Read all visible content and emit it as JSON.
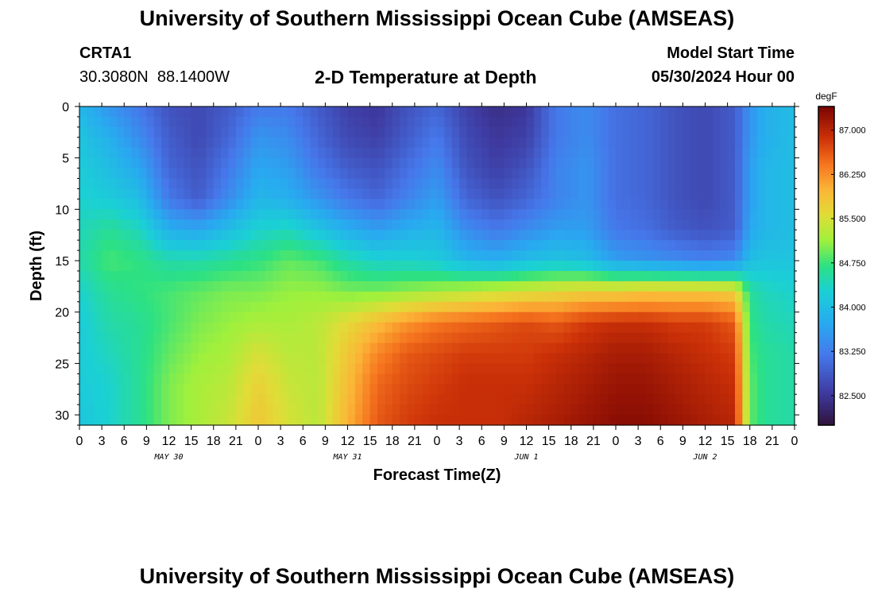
{
  "header": {
    "title": "University of Southern Mississippi Ocean Cube (AMSEAS)",
    "station_id": "CRTA1",
    "coords": "30.3080N  88.1400W",
    "plot_title": "2-D Temperature at Depth",
    "start_label": "Model Start Time",
    "start_value": "05/30/2024 Hour 00"
  },
  "footer": {
    "title": "University of Southern Mississippi Ocean Cube (AMSEAS)"
  },
  "chart_data": {
    "type": "heatmap",
    "title": "2-D Temperature at Depth",
    "xlabel": "Forecast Time(Z)",
    "ylabel": "Depth (ft)",
    "x_range_hours": [
      0,
      96
    ],
    "ylim": [
      0,
      31
    ],
    "x_ticks": [
      {
        "h": 0,
        "label": "0"
      },
      {
        "h": 3,
        "label": "3"
      },
      {
        "h": 6,
        "label": "6"
      },
      {
        "h": 9,
        "label": "9"
      },
      {
        "h": 12,
        "label": "12"
      },
      {
        "h": 15,
        "label": "15"
      },
      {
        "h": 18,
        "label": "18"
      },
      {
        "h": 21,
        "label": "21"
      },
      {
        "h": 24,
        "label": "0"
      },
      {
        "h": 27,
        "label": "3"
      },
      {
        "h": 30,
        "label": "6"
      },
      {
        "h": 33,
        "label": "9"
      },
      {
        "h": 36,
        "label": "12"
      },
      {
        "h": 39,
        "label": "15"
      },
      {
        "h": 42,
        "label": "18"
      },
      {
        "h": 45,
        "label": "21"
      },
      {
        "h": 48,
        "label": "0"
      },
      {
        "h": 51,
        "label": "3"
      },
      {
        "h": 54,
        "label": "6"
      },
      {
        "h": 57,
        "label": "9"
      },
      {
        "h": 60,
        "label": "12"
      },
      {
        "h": 63,
        "label": "15"
      },
      {
        "h": 66,
        "label": "18"
      },
      {
        "h": 69,
        "label": "21"
      },
      {
        "h": 72,
        "label": "0"
      },
      {
        "h": 75,
        "label": "3"
      },
      {
        "h": 78,
        "label": "6"
      },
      {
        "h": 81,
        "label": "9"
      },
      {
        "h": 84,
        "label": "12"
      },
      {
        "h": 87,
        "label": "15"
      },
      {
        "h": 90,
        "label": "18"
      },
      {
        "h": 93,
        "label": "21"
      },
      {
        "h": 96,
        "label": "0"
      }
    ],
    "date_labels": [
      {
        "h": 12,
        "label": "MAY 30"
      },
      {
        "h": 36,
        "label": "MAY 31"
      },
      {
        "h": 60,
        "label": "JUN 1"
      },
      {
        "h": 84,
        "label": "JUN 2"
      }
    ],
    "y_ticks": [
      0,
      5,
      10,
      15,
      20,
      25,
      30
    ],
    "colorbar": {
      "unit": "degF",
      "min": 82.0,
      "max": 87.4,
      "ticks": [
        {
          "value": 87.0,
          "label": "87.000"
        },
        {
          "value": 86.25,
          "label": "86.250"
        },
        {
          "value": 85.5,
          "label": "85.500"
        },
        {
          "value": 84.75,
          "label": "84.750"
        },
        {
          "value": 84.0,
          "label": "84.000"
        },
        {
          "value": 83.25,
          "label": "83.250"
        },
        {
          "value": 82.5,
          "label": "82.500"
        }
      ]
    },
    "depths_ft": [
      0,
      3,
      6,
      9,
      12,
      15,
      18,
      21,
      24,
      27,
      31
    ],
    "times_h": [
      0,
      4,
      8,
      12,
      16,
      20,
      24,
      28,
      32,
      36,
      40,
      44,
      48,
      52,
      56,
      60,
      64,
      68,
      72,
      76,
      80,
      84,
      88,
      90,
      92,
      96
    ],
    "temperature_degF": [
      [
        83.9,
        83.5,
        83.2,
        82.8,
        82.7,
        82.9,
        83.2,
        83.2,
        82.9,
        82.6,
        82.5,
        82.8,
        83.0,
        82.6,
        82.4,
        82.5,
        83.2,
        83.4,
        83.1,
        83.0,
        82.8,
        82.7,
        82.9,
        83.5,
        83.8,
        84.0
      ],
      [
        84.1,
        83.8,
        83.4,
        82.9,
        82.7,
        83.0,
        83.5,
        83.4,
        83.0,
        82.7,
        82.6,
        82.9,
        83.2,
        82.7,
        82.5,
        82.6,
        83.2,
        83.4,
        83.1,
        83.0,
        82.8,
        82.7,
        82.9,
        83.5,
        83.8,
        84.0
      ],
      [
        84.2,
        84.0,
        83.7,
        83.0,
        82.8,
        83.2,
        83.7,
        83.6,
        83.2,
        82.9,
        82.8,
        83.1,
        83.4,
        82.8,
        82.6,
        82.8,
        83.3,
        83.5,
        83.1,
        83.0,
        82.8,
        82.7,
        82.9,
        83.6,
        83.9,
        84.0
      ],
      [
        84.3,
        84.2,
        84.0,
        83.2,
        82.9,
        83.4,
        83.9,
        83.8,
        83.5,
        83.2,
        83.0,
        83.3,
        83.6,
        83.0,
        82.8,
        83.0,
        83.3,
        83.5,
        83.1,
        83.0,
        82.8,
        82.7,
        82.9,
        83.6,
        83.9,
        84.0
      ],
      [
        84.4,
        84.6,
        84.4,
        83.8,
        83.7,
        84.0,
        84.3,
        84.4,
        84.1,
        83.8,
        83.6,
        83.8,
        83.9,
        83.4,
        83.2,
        83.4,
        83.6,
        83.6,
        83.2,
        83.1,
        82.9,
        82.8,
        82.9,
        83.7,
        83.9,
        84.0
      ],
      [
        84.5,
        84.8,
        84.7,
        84.5,
        84.5,
        84.6,
        84.7,
        84.9,
        84.8,
        84.5,
        84.3,
        84.3,
        84.2,
        83.9,
        83.8,
        84.0,
        84.1,
        84.0,
        83.6,
        83.5,
        83.4,
        83.3,
        83.4,
        84.0,
        84.1,
        84.1
      ],
      [
        84.3,
        84.6,
        84.7,
        84.8,
        84.9,
        85.0,
        85.0,
        85.1,
        85.1,
        85.0,
        85.0,
        85.1,
        85.2,
        85.3,
        85.4,
        85.5,
        85.6,
        85.7,
        85.7,
        85.8,
        85.8,
        85.8,
        85.7,
        84.6,
        84.4,
        84.3
      ],
      [
        84.2,
        84.5,
        84.6,
        84.8,
        85.0,
        85.1,
        85.2,
        85.2,
        85.3,
        85.6,
        85.9,
        86.2,
        86.4,
        86.5,
        86.6,
        86.7,
        86.6,
        86.8,
        86.9,
        86.9,
        86.8,
        86.8,
        86.6,
        84.7,
        84.5,
        84.4
      ],
      [
        84.2,
        84.4,
        84.6,
        84.9,
        85.1,
        85.2,
        85.5,
        85.3,
        85.3,
        85.8,
        86.3,
        86.6,
        86.7,
        86.8,
        86.8,
        86.8,
        86.9,
        87.0,
        87.1,
        87.1,
        87.0,
        86.9,
        86.8,
        84.8,
        84.6,
        84.5
      ],
      [
        84.2,
        84.3,
        84.6,
        85.0,
        85.2,
        85.3,
        85.7,
        85.4,
        85.3,
        85.9,
        86.5,
        86.7,
        86.8,
        86.9,
        86.9,
        86.9,
        87.0,
        87.1,
        87.2,
        87.2,
        87.1,
        87.0,
        86.9,
        84.9,
        84.6,
        84.5
      ],
      [
        84.1,
        84.3,
        84.6,
        85.0,
        85.2,
        85.4,
        85.8,
        85.5,
        85.3,
        86.0,
        86.6,
        86.8,
        86.9,
        86.9,
        86.9,
        87.0,
        87.1,
        87.2,
        87.3,
        87.3,
        87.2,
        87.1,
        87.0,
        84.9,
        84.6,
        84.5
      ]
    ]
  }
}
